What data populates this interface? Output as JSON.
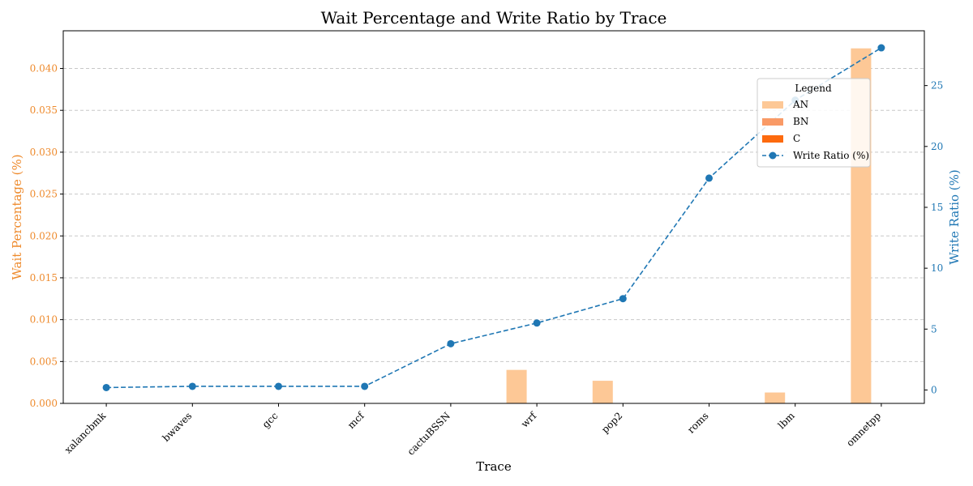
{
  "chart_data": {
    "type": "bar",
    "title": "Wait Percentage and Write Ratio by Trace",
    "xlabel": "Trace",
    "ylabel": "Wait Percentage (%)",
    "y2label": "Write Ratio (%)",
    "categories": [
      "xalancbmk",
      "bwaves",
      "gcc",
      "mcf",
      "cactuBSSN",
      "wrf",
      "pop2",
      "roms",
      "lbm",
      "omnetpp"
    ],
    "ylim": [
      0,
      0.0445
    ],
    "yticks": [
      0.0,
      0.005,
      0.01,
      0.015,
      0.02,
      0.025,
      0.03,
      0.035,
      0.04
    ],
    "y2lim": [
      -1.1,
      29.5
    ],
    "y2ticks": [
      0,
      5,
      10,
      15,
      20,
      25
    ],
    "grid": "y-dashed",
    "legend_title": "Legend",
    "legend_position": "top-right",
    "series": [
      {
        "name": "AN",
        "kind": "bar",
        "axis": "left",
        "color": "#fdc896",
        "values": [
          0,
          0,
          0,
          5e-05,
          0,
          0.004,
          0.0027,
          5e-05,
          0.0013,
          0.0424
        ]
      },
      {
        "name": "BN",
        "kind": "bar",
        "axis": "left",
        "color": "#f99a66",
        "values": [
          0,
          0,
          0,
          0,
          0,
          0,
          0,
          0,
          0,
          0
        ]
      },
      {
        "name": "C",
        "kind": "bar",
        "axis": "left",
        "color": "#fd6a0e",
        "values": [
          0,
          0,
          0,
          0,
          0,
          0,
          0,
          0,
          0,
          0
        ]
      },
      {
        "name": "Write Ratio (%)",
        "kind": "line",
        "axis": "right",
        "color": "#1f77b4",
        "values": [
          0.2,
          0.3,
          0.3,
          0.3,
          3.8,
          5.5,
          7.5,
          17.4,
          23.8,
          28.1
        ]
      }
    ],
    "colors": {
      "left_axis": "#ee8a2c",
      "right_axis": "#1f77b4",
      "grid": "#c8c8c8"
    }
  }
}
